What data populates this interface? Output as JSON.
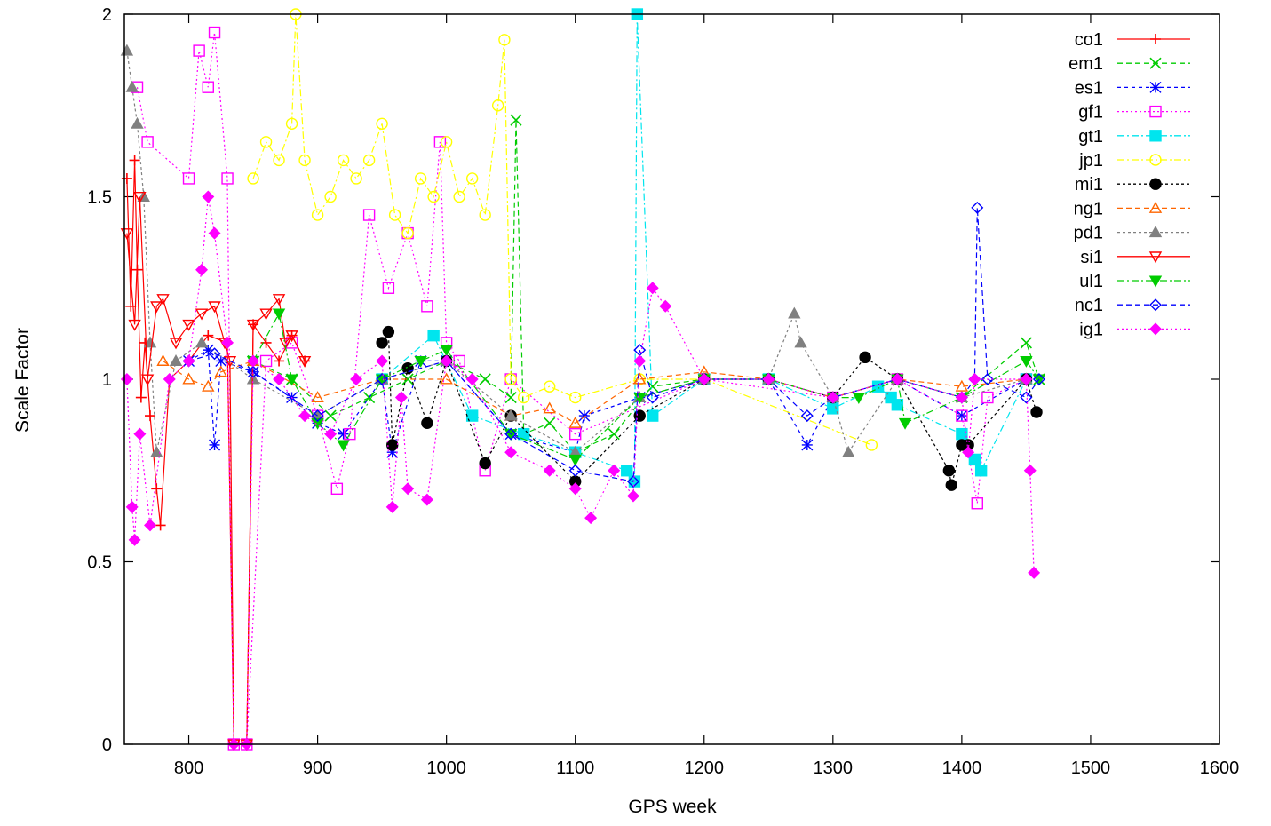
{
  "chart_data": {
    "type": "line",
    "title": "",
    "xlabel": "GPS week",
    "ylabel": "Scale Factor",
    "xlim": [
      750,
      1600
    ],
    "ylim": [
      0,
      2
    ],
    "x_ticks": [
      800,
      900,
      1000,
      1100,
      1200,
      1300,
      1400,
      1500,
      1600
    ],
    "y_ticks": [
      0,
      0.5,
      1,
      1.5,
      2
    ],
    "x_tick_labels": [
      "800",
      "900",
      "1000",
      "1100",
      "1200",
      "1300",
      "1400",
      "1500",
      "1600"
    ],
    "y_tick_labels": [
      "0",
      "0.5",
      "1",
      "1.5",
      "2"
    ],
    "legend_position": "top-right",
    "grid": false,
    "series": [
      {
        "name": "co1",
        "color": "#ff0000",
        "marker": "plus",
        "dash": "",
        "x": [
          752,
          755,
          758,
          760,
          763,
          766,
          770,
          775,
          778,
          785,
          800,
          815,
          830,
          835,
          845,
          850,
          860,
          870,
          880,
          890
        ],
        "y": [
          1.55,
          1.2,
          1.6,
          1.3,
          0.95,
          1.1,
          0.9,
          0.7,
          0.6,
          1.0,
          1.05,
          1.12,
          1.1,
          0,
          0,
          1.15,
          1.1,
          1.05,
          1.12,
          1.05
        ]
      },
      {
        "name": "em1",
        "color": "#00cc00",
        "marker": "x",
        "dash": "6,4",
        "x": [
          850,
          880,
          910,
          940,
          970,
          1000,
          1030,
          1050,
          1054,
          1060,
          1080,
          1100,
          1130,
          1160,
          1200,
          1250,
          1300,
          1350,
          1400,
          1450,
          1460
        ],
        "y": [
          1.05,
          1.0,
          0.9,
          0.95,
          1.0,
          1.05,
          1.0,
          0.95,
          1.71,
          0.85,
          0.88,
          0.8,
          0.85,
          0.98,
          1.0,
          1.0,
          0.95,
          1.0,
          0.95,
          1.1,
          1.0
        ]
      },
      {
        "name": "es1",
        "color": "#0000ff",
        "marker": "star",
        "dash": "4,4",
        "x": [
          800,
          815,
          820,
          825,
          850,
          880,
          900,
          920,
          950,
          958,
          980,
          1000,
          1050,
          1100,
          1107,
          1150,
          1200,
          1250,
          1280,
          1300,
          1350,
          1400,
          1450
        ],
        "y": [
          1.05,
          1.08,
          0.82,
          1.05,
          1.02,
          0.95,
          0.88,
          0.85,
          1.0,
          0.8,
          1.05,
          1.05,
          0.85,
          0.8,
          0.9,
          0.95,
          1.0,
          1.0,
          0.82,
          0.95,
          1.0,
          0.9,
          1.0
        ]
      },
      {
        "name": "gf1",
        "color": "#ff00ff",
        "marker": "square",
        "dash": "2,3",
        "x": [
          760,
          768,
          800,
          808,
          815,
          820,
          830,
          835,
          845,
          860,
          880,
          900,
          915,
          925,
          940,
          955,
          970,
          985,
          995,
          1000,
          1010,
          1030,
          1050,
          1100,
          1200,
          1300,
          1350,
          1400,
          1412,
          1420,
          1450
        ],
        "y": [
          1.8,
          1.65,
          1.55,
          1.9,
          1.8,
          1.95,
          1.55,
          0,
          0,
          1.05,
          1.1,
          0.9,
          0.7,
          0.85,
          1.45,
          1.25,
          1.4,
          1.2,
          1.65,
          1.1,
          1.05,
          0.75,
          1.0,
          0.85,
          1.0,
          0.95,
          1.0,
          0.9,
          0.66,
          0.95,
          1.0
        ]
      },
      {
        "name": "gt1",
        "color": "#00e5ee",
        "marker": "filled-square",
        "dash": "8,3,2,3",
        "x": [
          950,
          990,
          1020,
          1060,
          1100,
          1140,
          1146,
          1148,
          1160,
          1200,
          1250,
          1300,
          1335,
          1345,
          1350,
          1400,
          1410,
          1415,
          1450
        ],
        "y": [
          1.0,
          1.12,
          0.9,
          0.85,
          0.8,
          0.75,
          0.72,
          2.0,
          0.9,
          1.0,
          1.0,
          0.92,
          0.98,
          0.95,
          0.93,
          0.85,
          0.78,
          0.75,
          1.0
        ]
      },
      {
        "name": "jp1",
        "color": "#ffff00",
        "marker": "circle",
        "dash": "8,3,2,3",
        "x": [
          850,
          860,
          870,
          880,
          883,
          890,
          900,
          910,
          920,
          930,
          940,
          950,
          960,
          970,
          980,
          990,
          1000,
          1010,
          1020,
          1030,
          1040,
          1045,
          1050,
          1060,
          1080,
          1100,
          1150,
          1200,
          1330
        ],
        "y": [
          1.55,
          1.65,
          1.6,
          1.7,
          2.0,
          1.6,
          1.45,
          1.5,
          1.6,
          1.55,
          1.6,
          1.7,
          1.45,
          1.4,
          1.55,
          1.5,
          1.65,
          1.5,
          1.55,
          1.45,
          1.75,
          1.93,
          1.0,
          0.95,
          0.98,
          0.95,
          1.0,
          1.0,
          0.82
        ]
      },
      {
        "name": "mi1",
        "color": "#000000",
        "marker": "filled-circle",
        "dash": "3,3",
        "x": [
          950,
          955,
          958,
          970,
          985,
          1000,
          1030,
          1050,
          1100,
          1150,
          1200,
          1250,
          1300,
          1325,
          1350,
          1390,
          1392,
          1400,
          1405,
          1450,
          1458
        ],
        "y": [
          1.1,
          1.13,
          0.82,
          1.03,
          0.88,
          1.05,
          0.77,
          0.9,
          0.72,
          0.9,
          1.0,
          1.0,
          0.95,
          1.06,
          1.0,
          0.75,
          0.71,
          0.82,
          0.82,
          1.0,
          0.91
        ]
      },
      {
        "name": "ng1",
        "color": "#ff6600",
        "marker": "triangle",
        "dash": "6,4",
        "x": [
          780,
          800,
          815,
          825,
          850,
          900,
          950,
          1000,
          1050,
          1080,
          1100,
          1150,
          1200,
          1250,
          1300,
          1350,
          1400,
          1450
        ],
        "y": [
          1.05,
          1.0,
          0.98,
          1.02,
          1.05,
          0.95,
          1.0,
          1.0,
          0.9,
          0.92,
          0.88,
          1.0,
          1.02,
          1.0,
          0.95,
          1.0,
          0.98,
          1.0
        ]
      },
      {
        "name": "pd1",
        "color": "#808080",
        "marker": "filled-triangle",
        "dash": "3,3",
        "x": [
          752,
          756,
          760,
          765,
          770,
          775,
          790,
          810,
          850,
          900,
          950,
          1000,
          1050,
          1100,
          1150,
          1200,
          1250,
          1270,
          1275,
          1300,
          1312,
          1350,
          1400,
          1450
        ],
        "y": [
          1.9,
          1.8,
          1.7,
          1.5,
          1.1,
          0.8,
          1.05,
          1.1,
          1.0,
          0.9,
          1.0,
          1.05,
          0.9,
          0.8,
          0.95,
          1.0,
          1.0,
          1.18,
          1.1,
          0.95,
          0.8,
          1.0,
          0.95,
          1.0
        ]
      },
      {
        "name": "si1",
        "color": "#ff0000",
        "marker": "triangle-down",
        "dash": "",
        "x": [
          752,
          758,
          762,
          768,
          775,
          780,
          790,
          800,
          810,
          820,
          828,
          832,
          835,
          845,
          850,
          860,
          870,
          875,
          880,
          890
        ],
        "y": [
          1.4,
          1.15,
          1.5,
          1.0,
          1.2,
          1.22,
          1.1,
          1.15,
          1.18,
          1.2,
          1.1,
          1.05,
          0,
          0,
          1.15,
          1.18,
          1.22,
          1.1,
          1.12,
          1.05
        ]
      },
      {
        "name": "ul1",
        "color": "#00cc00",
        "marker": "filled-triangle-down",
        "dash": "8,3,2,3",
        "x": [
          850,
          870,
          880,
          900,
          920,
          950,
          980,
          1000,
          1050,
          1100,
          1150,
          1200,
          1250,
          1300,
          1320,
          1350,
          1356,
          1400,
          1450,
          1460
        ],
        "y": [
          1.05,
          1.18,
          1.0,
          0.88,
          0.82,
          1.0,
          1.05,
          1.08,
          0.85,
          0.78,
          0.95,
          1.0,
          1.0,
          0.95,
          0.95,
          1.0,
          0.88,
          0.95,
          1.05,
          1.0
        ]
      },
      {
        "name": "nc1",
        "color": "#0000ff",
        "marker": "diamond",
        "dash": "6,4",
        "x": [
          800,
          820,
          850,
          900,
          950,
          1000,
          1050,
          1100,
          1145,
          1150,
          1160,
          1200,
          1250,
          1280,
          1300,
          1350,
          1400,
          1410,
          1412,
          1420,
          1450,
          1460
        ],
        "y": [
          1.05,
          1.07,
          1.02,
          0.9,
          1.0,
          1.05,
          0.85,
          0.75,
          0.72,
          1.08,
          0.95,
          1.0,
          1.0,
          0.9,
          0.95,
          1.0,
          0.95,
          1.0,
          1.47,
          1.0,
          0.95,
          1.0
        ]
      },
      {
        "name": "ig1",
        "color": "#ff00ff",
        "marker": "filled-diamond",
        "dash": "2,3",
        "x": [
          752,
          756,
          758,
          762,
          770,
          785,
          800,
          810,
          815,
          820,
          830,
          835,
          845,
          850,
          870,
          890,
          910,
          930,
          950,
          958,
          965,
          970,
          985,
          1000,
          1020,
          1050,
          1080,
          1100,
          1112,
          1130,
          1145,
          1150,
          1160,
          1170,
          1200,
          1250,
          1300,
          1350,
          1400,
          1405,
          1410,
          1450,
          1453,
          1456
        ],
        "y": [
          1.0,
          0.65,
          0.56,
          0.85,
          0.6,
          1.0,
          1.05,
          1.3,
          1.5,
          1.4,
          1.1,
          0,
          0,
          1.05,
          1.0,
          0.9,
          0.85,
          1.0,
          1.05,
          0.65,
          0.95,
          0.7,
          0.67,
          1.05,
          1.0,
          0.8,
          0.75,
          0.7,
          0.62,
          0.75,
          0.68,
          1.05,
          1.25,
          1.2,
          1.0,
          1.0,
          0.95,
          1.0,
          0.95,
          0.8,
          1.0,
          1.0,
          0.75,
          0.47
        ]
      }
    ]
  }
}
